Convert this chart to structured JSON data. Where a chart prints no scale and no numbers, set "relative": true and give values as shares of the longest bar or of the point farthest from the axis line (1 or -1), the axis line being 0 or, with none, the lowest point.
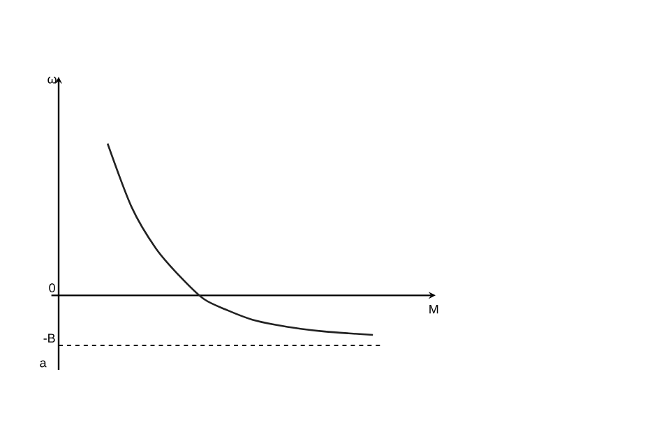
{
  "chart_data": {
    "type": "line",
    "relative": true,
    "xlabel": "M",
    "color": "#222222",
    "categories": [
      null,
      null,
      null,
      null,
      null,
      null,
      null,
      null,
      null,
      null,
      null,
      null
    ],
    "values": [
      1.0,
      0.58,
      0.31,
      0.125,
      -0.025,
      -0.1,
      -0.16,
      -0.195,
      -0.22,
      -0.238,
      -0.25,
      -0.26
    ],
    "ref_lines": [
      {
        "axis": "y",
        "value": 0,
        "label": "0",
        "line_style": "solid"
      },
      {
        "axis": "y",
        "value": -0.33,
        "label": "-B",
        "line_style": "dashed"
      }
    ],
    "marker": "none",
    "line_style": "solid",
    "annotations": [
      "ω",
      "a"
    ]
  }
}
